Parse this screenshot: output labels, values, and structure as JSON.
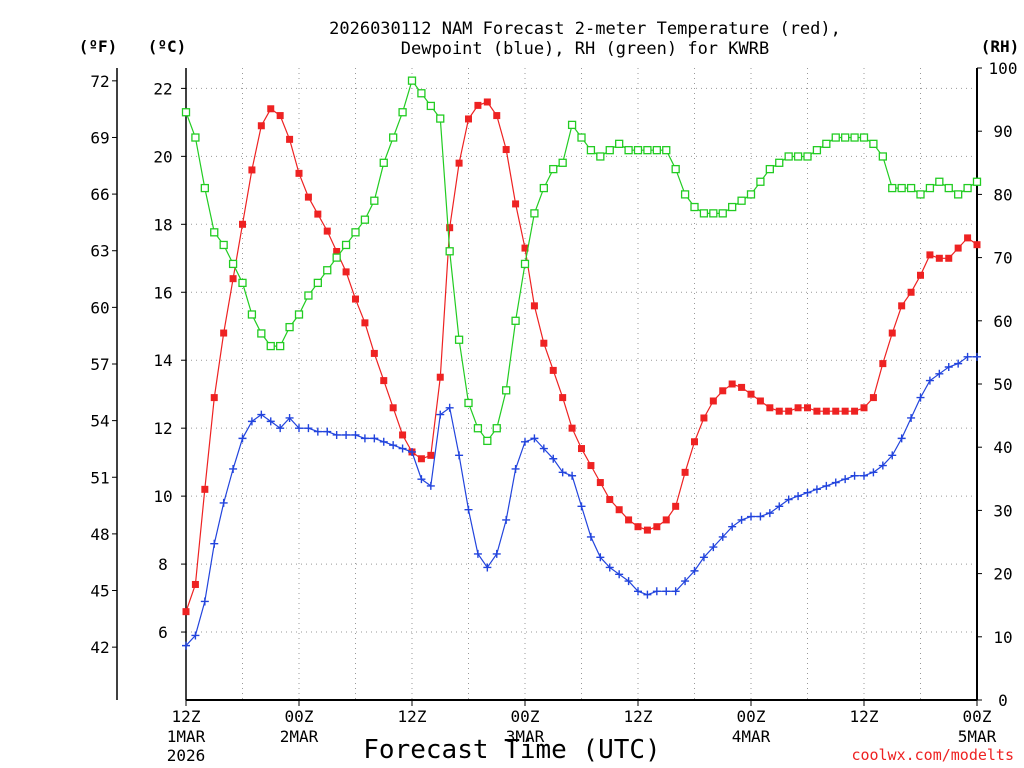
{
  "chart_data": {
    "type": "line",
    "title_line1": "2026030112 NAM Forecast 2-meter Temperature (red),",
    "title_line2": "Dewpoint (blue), RH (green) for KWRB",
    "xlabel": "Forecast Time (UTC)",
    "credit": "coolwx.com/modelts",
    "units": {
      "fahrenheit": "(ºF)",
      "celsius": "(ºC)",
      "rh": "(RH)"
    },
    "x_range_hours": [
      0,
      84
    ],
    "y_celsius_range": [
      4.0,
      22.6
    ],
    "y_rh_range": [
      0,
      100
    ],
    "y_fahrenheit_ticks": [
      42,
      45,
      48,
      51,
      54,
      57,
      60,
      63,
      66,
      69,
      72
    ],
    "y_celsius_ticks": [
      6,
      8,
      10,
      12,
      14,
      16,
      18,
      20,
      22
    ],
    "y_rh_ticks": [
      0,
      10,
      20,
      30,
      40,
      50,
      60,
      70,
      80,
      90,
      100
    ],
    "x_ticks": [
      {
        "hour": 0,
        "label": "12Z",
        "sub1": "1MAR",
        "sub2": "2026"
      },
      {
        "hour": 12,
        "label": "00Z",
        "sub1": "2MAR",
        "sub2": ""
      },
      {
        "hour": 24,
        "label": "12Z",
        "sub1": "",
        "sub2": ""
      },
      {
        "hour": 36,
        "label": "00Z",
        "sub1": "3MAR",
        "sub2": ""
      },
      {
        "hour": 48,
        "label": "12Z",
        "sub1": "",
        "sub2": ""
      },
      {
        "hour": 60,
        "label": "00Z",
        "sub1": "4MAR",
        "sub2": ""
      },
      {
        "hour": 72,
        "label": "12Z",
        "sub1": "",
        "sub2": ""
      },
      {
        "hour": 84,
        "label": "00Z",
        "sub1": "5MAR",
        "sub2": ""
      }
    ],
    "series": [
      {
        "name": "Temperature (°C)",
        "color": "#ee2222",
        "marker": "filled-square",
        "axis": "celsius",
        "x": [
          0,
          1,
          2,
          3,
          4,
          5,
          6,
          7,
          8,
          9,
          10,
          11,
          12,
          13,
          14,
          15,
          16,
          17,
          18,
          19,
          20,
          21,
          22,
          23,
          24,
          25,
          26,
          27,
          28,
          29,
          30,
          31,
          32,
          33,
          34,
          35,
          36,
          37,
          38,
          39,
          40,
          41,
          42,
          43,
          44,
          45,
          46,
          47,
          48,
          49,
          50,
          51,
          52,
          53,
          54,
          55,
          56,
          57,
          58,
          59,
          60,
          61,
          62,
          63,
          64,
          65,
          66,
          67,
          68,
          69,
          70,
          71,
          72,
          73,
          74,
          75,
          76,
          77,
          78,
          79,
          80,
          81,
          82,
          83,
          84
        ],
        "values": [
          6.6,
          7.4,
          10.2,
          12.9,
          14.8,
          16.4,
          18.0,
          19.6,
          20.9,
          21.4,
          21.2,
          20.5,
          19.5,
          18.8,
          18.3,
          17.8,
          17.2,
          16.6,
          15.8,
          15.1,
          14.2,
          13.4,
          12.6,
          11.8,
          11.3,
          11.1,
          11.2,
          13.5,
          17.9,
          19.8,
          21.1,
          21.5,
          21.6,
          21.2,
          20.2,
          18.6,
          17.3,
          15.6,
          14.5,
          13.7,
          12.9,
          12.0,
          11.4,
          10.9,
          10.4,
          9.9,
          9.6,
          9.3,
          9.1,
          9.0,
          9.1,
          9.3,
          9.7,
          10.7,
          11.6,
          12.3,
          12.8,
          13.1,
          13.3,
          13.2,
          13.0,
          12.8,
          12.6,
          12.5,
          12.5,
          12.6,
          12.6,
          12.5,
          12.5,
          12.5,
          12.5,
          12.5,
          12.6,
          12.9,
          13.9,
          14.8,
          15.6,
          16.0,
          16.5,
          17.1,
          17.0,
          17.0,
          17.3,
          17.6,
          17.4
        ]
      },
      {
        "name": "Dewpoint (°C)",
        "color": "#2244dd",
        "marker": "plus",
        "axis": "celsius",
        "x": [
          0,
          1,
          2,
          3,
          4,
          5,
          6,
          7,
          8,
          9,
          10,
          11,
          12,
          13,
          14,
          15,
          16,
          17,
          18,
          19,
          20,
          21,
          22,
          23,
          24,
          25,
          26,
          27,
          28,
          29,
          30,
          31,
          32,
          33,
          34,
          35,
          36,
          37,
          38,
          39,
          40,
          41,
          42,
          43,
          44,
          45,
          46,
          47,
          48,
          49,
          50,
          51,
          52,
          53,
          54,
          55,
          56,
          57,
          58,
          59,
          60,
          61,
          62,
          63,
          64,
          65,
          66,
          67,
          68,
          69,
          70,
          71,
          72,
          73,
          74,
          75,
          76,
          77,
          78,
          79,
          80,
          81,
          82,
          83,
          84
        ],
        "values": [
          5.6,
          5.9,
          6.9,
          8.6,
          9.8,
          10.8,
          11.7,
          12.2,
          12.4,
          12.2,
          12.0,
          12.3,
          12.0,
          12.0,
          11.9,
          11.9,
          11.8,
          11.8,
          11.8,
          11.7,
          11.7,
          11.6,
          11.5,
          11.4,
          11.3,
          10.5,
          10.3,
          12.4,
          12.6,
          11.2,
          9.6,
          8.3,
          7.9,
          8.3,
          9.3,
          10.8,
          11.6,
          11.7,
          11.4,
          11.1,
          10.7,
          10.6,
          9.7,
          8.8,
          8.2,
          7.9,
          7.7,
          7.5,
          7.2,
          7.1,
          7.2,
          7.2,
          7.2,
          7.5,
          7.8,
          8.2,
          8.5,
          8.8,
          9.1,
          9.3,
          9.4,
          9.4,
          9.5,
          9.7,
          9.9,
          10.0,
          10.1,
          10.2,
          10.3,
          10.4,
          10.5,
          10.6,
          10.6,
          10.7,
          10.9,
          11.2,
          11.7,
          12.3,
          12.9,
          13.4,
          13.6,
          13.8,
          13.9,
          14.1,
          14.1
        ]
      },
      {
        "name": "RH (%)",
        "color": "#22cc22",
        "marker": "open-square",
        "axis": "rh",
        "x": [
          0,
          1,
          2,
          3,
          4,
          5,
          6,
          7,
          8,
          9,
          10,
          11,
          12,
          13,
          14,
          15,
          16,
          17,
          18,
          19,
          20,
          21,
          22,
          23,
          24,
          25,
          26,
          27,
          28,
          29,
          30,
          31,
          32,
          33,
          34,
          35,
          36,
          37,
          38,
          39,
          40,
          41,
          42,
          43,
          44,
          45,
          46,
          47,
          48,
          49,
          50,
          51,
          52,
          53,
          54,
          55,
          56,
          57,
          58,
          59,
          60,
          61,
          62,
          63,
          64,
          65,
          66,
          67,
          68,
          69,
          70,
          71,
          72,
          73,
          74,
          75,
          76,
          77,
          78,
          79,
          80,
          81,
          82,
          83,
          84
        ],
        "values": [
          93,
          89,
          81,
          74,
          72,
          69,
          66,
          61,
          58,
          56,
          56,
          59,
          61,
          64,
          66,
          68,
          70,
          72,
          74,
          76,
          79,
          85,
          89,
          93,
          98,
          96,
          94,
          92,
          71,
          57,
          47,
          43,
          41,
          43,
          49,
          60,
          69,
          77,
          81,
          84,
          85,
          91,
          89,
          87,
          86,
          87,
          88,
          87,
          87,
          87,
          87,
          87,
          84,
          80,
          78,
          77,
          77,
          77,
          78,
          79,
          80,
          82,
          84,
          85,
          86,
          86,
          86,
          87,
          88,
          89,
          89,
          89,
          89,
          88,
          86,
          81,
          81,
          81,
          80,
          81,
          82,
          81,
          80,
          81,
          82
        ]
      }
    ]
  }
}
